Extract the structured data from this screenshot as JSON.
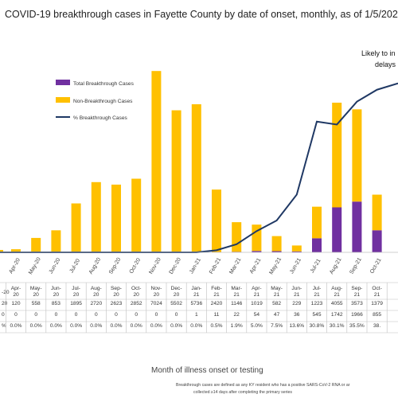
{
  "chart_data": {
    "type": "bar",
    "title": "COVID-19 breakthrough cases in Fayette County by date of onset, monthly, as of 1/5/2021",
    "xlabel": "Month of illness onset or testing",
    "categories": [
      "Apr-20",
      "May-20",
      "Jun-20",
      "Jul-20",
      "Aug-20",
      "Sep-20",
      "Oct-20",
      "Nov-20",
      "Dec-20",
      "Jan-21",
      "Feb-21",
      "Mar-21",
      "Apr-21",
      "May-21",
      "Jun-21",
      "Jul-21",
      "Aug-21",
      "Sep-21",
      "Oct-21"
    ],
    "row_labels": [
      "-20",
      "20",
      "0",
      "%"
    ],
    "series": [
      {
        "name": "Total Breakthrough Cases",
        "color": "#7030a0",
        "type": "bar",
        "values": [
          0,
          0,
          0,
          0,
          0,
          0,
          0,
          0,
          0,
          1,
          11,
          22,
          54,
          47,
          36,
          545,
          1742,
          1966,
          855
        ]
      },
      {
        "name": "Non-Breakthrough Cases",
        "color": "#ffc000",
        "type": "bar",
        "values": [
          120,
          558,
          853,
          1895,
          2720,
          2623,
          2852,
          7024,
          5502,
          5736,
          2420,
          1146,
          1019,
          582,
          229,
          1223,
          4055,
          3573,
          1379
        ]
      },
      {
        "name": "% Breakthrough Cases",
        "color": "#1f3864",
        "type": "line",
        "values": [
          0.0,
          0.0,
          0.0,
          0.0,
          0.0,
          0.0,
          0.0,
          0.0,
          0.0,
          0.0,
          0.5,
          1.9,
          5.0,
          7.5,
          13.6,
          30.8,
          30.1,
          35.5,
          38.3
        ]
      }
    ],
    "pct_labels": [
      "0.0%",
      "0.0%",
      "0.0%",
      "0.0%",
      "0.0%",
      "0.0%",
      "0.0%",
      "0.0%",
      "0.0%",
      "0.0%",
      "0.5%",
      "1.9%",
      "5.0%",
      "7.5%",
      "13.6%",
      "30.8%",
      "30.1%",
      "35.5%",
      "38."
    ],
    "row1_last": "13",
    "row1_prefix": "0",
    "row2_prefix": "0",
    "row3_prefix": "%",
    "ylim": [
      0,
      7400
    ],
    "pct_ylim": [
      0,
      45
    ],
    "annotation": [
      "Likely to in",
      "delays"
    ],
    "legend_position": "top-left",
    "footnote": [
      "Breakthrough cases are defined as any KY resident who has a positive SARS-CoV-2 RNA or ar",
      "collected ≥14 days after completing the primary series"
    ]
  }
}
